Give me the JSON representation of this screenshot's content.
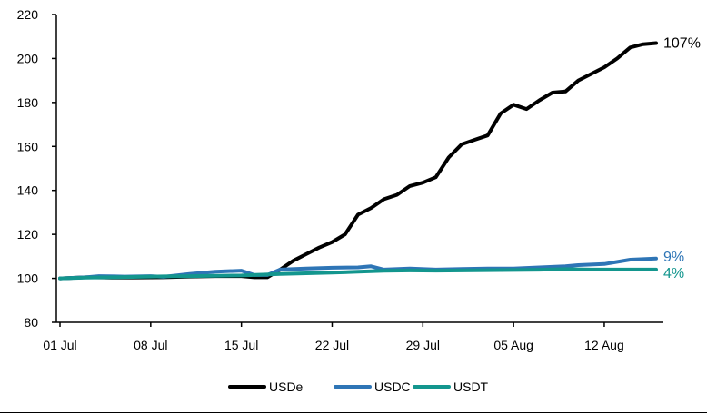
{
  "chart_data": {
    "type": "line",
    "title": "",
    "xlabel": "",
    "ylabel": "",
    "ylim": [
      80,
      220
    ],
    "yticks": [
      80,
      100,
      120,
      140,
      160,
      180,
      200,
      220
    ],
    "xlim": [
      "2024-07-01",
      "2024-08-16"
    ],
    "xticks": [
      {
        "date": "2024-07-01",
        "label": "01 Jul"
      },
      {
        "date": "2024-07-08",
        "label": "08 Jul"
      },
      {
        "date": "2024-07-15",
        "label": "15 Jul"
      },
      {
        "date": "2024-07-22",
        "label": "22 Jul"
      },
      {
        "date": "2024-07-29",
        "label": "29 Jul"
      },
      {
        "date": "2024-08-05",
        "label": "05 Aug"
      },
      {
        "date": "2024-08-12",
        "label": "12 Aug"
      }
    ],
    "grid": false,
    "legend_position": "bottom",
    "series": [
      {
        "name": "USDe",
        "color": "#000000",
        "end_label": "107%",
        "points": [
          [
            "2024-07-01",
            100
          ],
          [
            "2024-07-03",
            100.5
          ],
          [
            "2024-07-05",
            100.3
          ],
          [
            "2024-07-07",
            100.4
          ],
          [
            "2024-07-09",
            100.5
          ],
          [
            "2024-07-11",
            100.8
          ],
          [
            "2024-07-13",
            101
          ],
          [
            "2024-07-15",
            101
          ],
          [
            "2024-07-16",
            100.5
          ],
          [
            "2024-07-17",
            100.5
          ],
          [
            "2024-07-18",
            104
          ],
          [
            "2024-07-19",
            108
          ],
          [
            "2024-07-20",
            111
          ],
          [
            "2024-07-21",
            114
          ],
          [
            "2024-07-22",
            116.5
          ],
          [
            "2024-07-23",
            120
          ],
          [
            "2024-07-24",
            129
          ],
          [
            "2024-07-25",
            132
          ],
          [
            "2024-07-26",
            136
          ],
          [
            "2024-07-27",
            138
          ],
          [
            "2024-07-28",
            142
          ],
          [
            "2024-07-29",
            143.5
          ],
          [
            "2024-07-30",
            146
          ],
          [
            "2024-07-31",
            155
          ],
          [
            "2024-08-01",
            161
          ],
          [
            "2024-08-02",
            163
          ],
          [
            "2024-08-03",
            165
          ],
          [
            "2024-08-04",
            175
          ],
          [
            "2024-08-05",
            179
          ],
          [
            "2024-08-06",
            177
          ],
          [
            "2024-08-07",
            181
          ],
          [
            "2024-08-08",
            184.5
          ],
          [
            "2024-08-09",
            185
          ],
          [
            "2024-08-10",
            190
          ],
          [
            "2024-08-11",
            193
          ],
          [
            "2024-08-12",
            196
          ],
          [
            "2024-08-13",
            200
          ],
          [
            "2024-08-14",
            205
          ],
          [
            "2024-08-15",
            206.5
          ],
          [
            "2024-08-16",
            207
          ]
        ]
      },
      {
        "name": "USDC",
        "color": "#2E75B6",
        "end_label": "9%",
        "points": [
          [
            "2024-07-01",
            100
          ],
          [
            "2024-07-03",
            100.5
          ],
          [
            "2024-07-04",
            101
          ],
          [
            "2024-07-06",
            100.8
          ],
          [
            "2024-07-08",
            101
          ],
          [
            "2024-07-09",
            100.7
          ],
          [
            "2024-07-11",
            102
          ],
          [
            "2024-07-13",
            103
          ],
          [
            "2024-07-15",
            103.5
          ],
          [
            "2024-07-16",
            101.5
          ],
          [
            "2024-07-17",
            101.5
          ],
          [
            "2024-07-18",
            104
          ],
          [
            "2024-07-20",
            104.5
          ],
          [
            "2024-07-22",
            104.8
          ],
          [
            "2024-07-24",
            105
          ],
          [
            "2024-07-25",
            105.5
          ],
          [
            "2024-07-26",
            104
          ],
          [
            "2024-07-28",
            104.5
          ],
          [
            "2024-07-30",
            104
          ],
          [
            "2024-08-01",
            104.3
          ],
          [
            "2024-08-03",
            104.5
          ],
          [
            "2024-08-05",
            104.5
          ],
          [
            "2024-08-07",
            105
          ],
          [
            "2024-08-09",
            105.5
          ],
          [
            "2024-08-10",
            106
          ],
          [
            "2024-08-12",
            106.5
          ],
          [
            "2024-08-14",
            108.5
          ],
          [
            "2024-08-16",
            109
          ]
        ]
      },
      {
        "name": "USDT",
        "color": "#13968E",
        "end_label": "4%",
        "points": [
          [
            "2024-07-01",
            100
          ],
          [
            "2024-07-03",
            100.3
          ],
          [
            "2024-07-05",
            100.5
          ],
          [
            "2024-07-07",
            100.7
          ],
          [
            "2024-07-09",
            100.9
          ],
          [
            "2024-07-11",
            101
          ],
          [
            "2024-07-13",
            101.2
          ],
          [
            "2024-07-15",
            101.3
          ],
          [
            "2024-07-16",
            101.5
          ],
          [
            "2024-07-18",
            102
          ],
          [
            "2024-07-20",
            102.3
          ],
          [
            "2024-07-22",
            102.6
          ],
          [
            "2024-07-24",
            103
          ],
          [
            "2024-07-26",
            103.4
          ],
          [
            "2024-07-28",
            103.6
          ],
          [
            "2024-07-30",
            103.5
          ],
          [
            "2024-08-01",
            103.6
          ],
          [
            "2024-08-03",
            103.7
          ],
          [
            "2024-08-05",
            103.8
          ],
          [
            "2024-08-07",
            103.9
          ],
          [
            "2024-08-09",
            104.2
          ],
          [
            "2024-08-11",
            104
          ],
          [
            "2024-08-13",
            104
          ],
          [
            "2024-08-16",
            104
          ]
        ]
      }
    ]
  }
}
